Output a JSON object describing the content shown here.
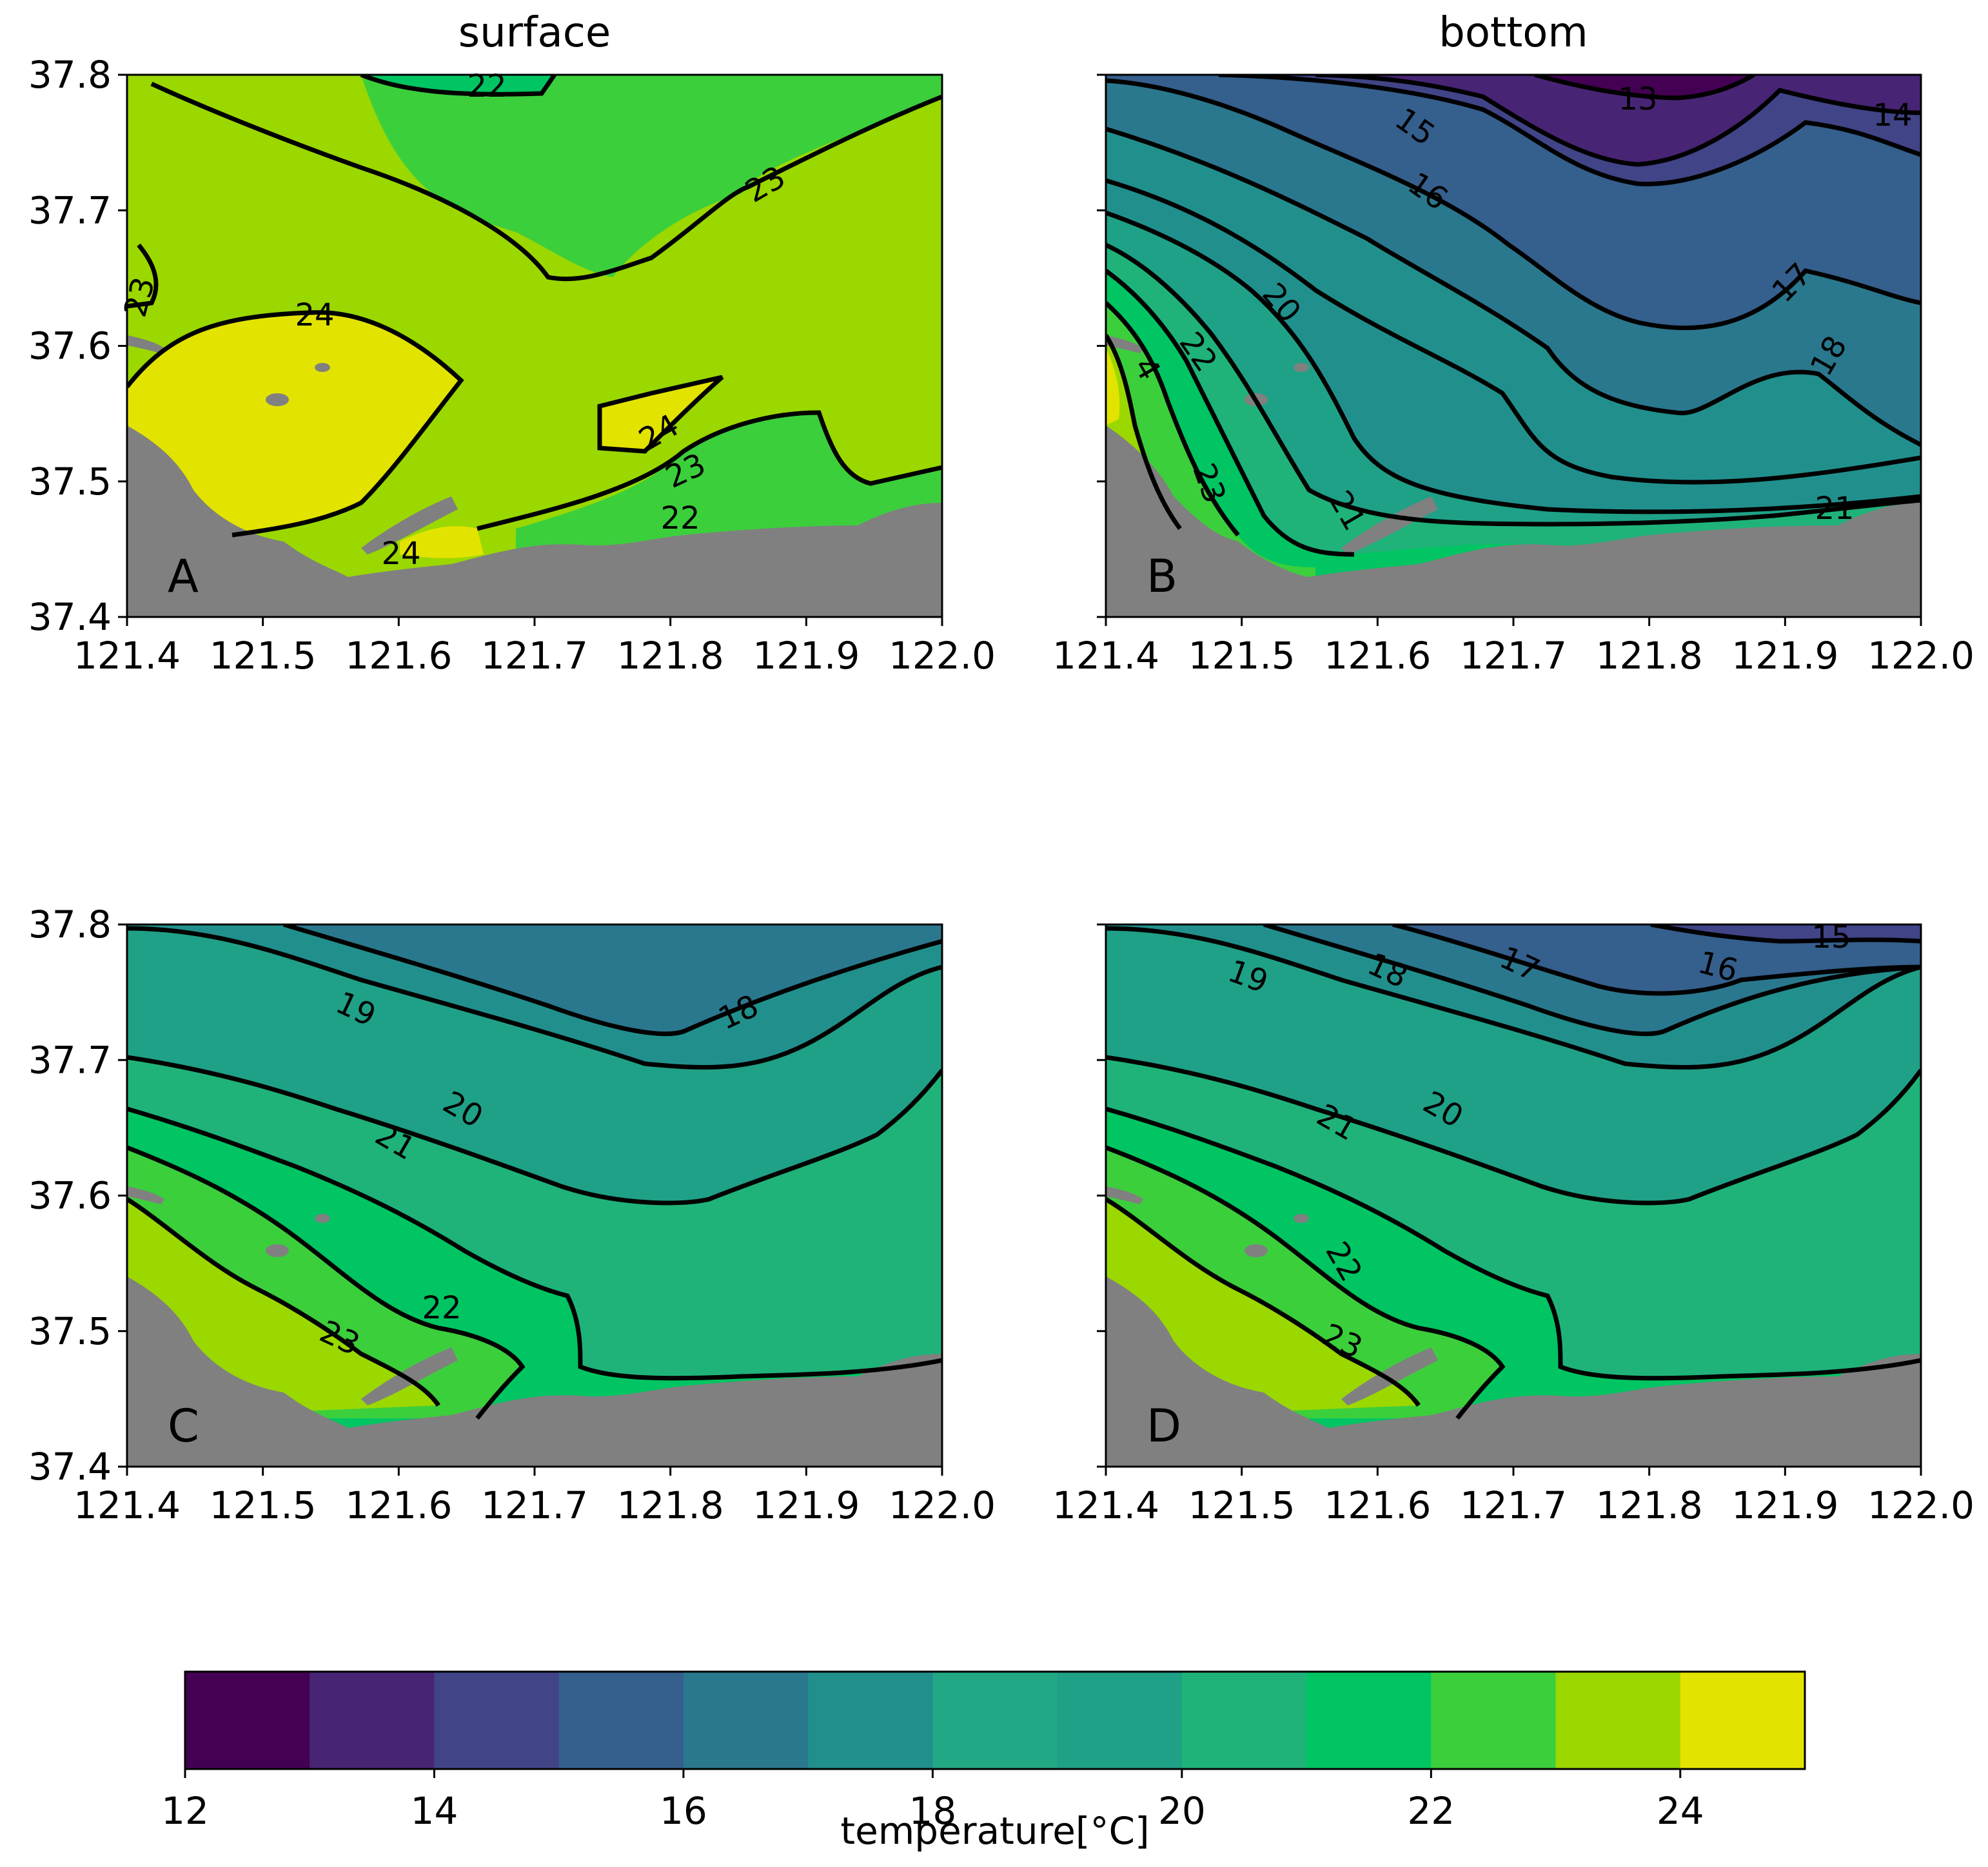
{
  "chart_data": [
    {
      "type": "heatmap",
      "panel": "A",
      "title": "surface",
      "xlim": [
        121.4,
        122.0
      ],
      "ylim": [
        37.4,
        37.8
      ],
      "xticks": [
        "121.4",
        "121.5",
        "121.6",
        "121.7",
        "121.8",
        "121.9",
        "122.0"
      ],
      "yticks": [
        "37.4",
        "37.5",
        "37.6",
        "37.7",
        "37.8"
      ],
      "contour_labels": [
        "22",
        "23",
        "23",
        "24",
        "24",
        "24",
        "23",
        "22"
      ]
    },
    {
      "type": "heatmap",
      "panel": "B",
      "title": "bottom",
      "xlim": [
        121.4,
        122.0
      ],
      "ylim": [
        37.4,
        37.8
      ],
      "xticks": [
        "121.4",
        "121.5",
        "121.6",
        "121.7",
        "121.8",
        "121.9",
        "122.0"
      ],
      "yticks": [
        "37.4",
        "37.5",
        "37.6",
        "37.7",
        "37.8"
      ],
      "contour_labels": [
        "13",
        "14",
        "15",
        "16",
        "17",
        "18",
        "20",
        "22",
        "4",
        "23",
        "21",
        "21"
      ]
    },
    {
      "type": "heatmap",
      "panel": "C",
      "title": "",
      "xlim": [
        121.4,
        122.0
      ],
      "ylim": [
        37.4,
        37.8
      ],
      "xticks": [
        "121.4",
        "121.5",
        "121.6",
        "121.7",
        "121.8",
        "121.9",
        "122.0"
      ],
      "yticks": [
        "37.4",
        "37.5",
        "37.6",
        "37.7",
        "37.8"
      ],
      "contour_labels": [
        "18",
        "19",
        "20",
        "21",
        "22",
        "23"
      ]
    },
    {
      "type": "heatmap",
      "panel": "D",
      "title": "",
      "xlim": [
        121.4,
        122.0
      ],
      "ylim": [
        37.4,
        37.8
      ],
      "xticks": [
        "121.4",
        "121.5",
        "121.6",
        "121.7",
        "121.8",
        "121.9",
        "122.0"
      ],
      "yticks": [
        "37.4",
        "37.5",
        "37.6",
        "37.7",
        "37.8"
      ],
      "contour_labels": [
        "15",
        "16",
        "17",
        "18",
        "19",
        "20",
        "21",
        "22",
        "23"
      ]
    }
  ],
  "colorbar": {
    "label": "temperature[°C]",
    "range": [
      12,
      25
    ],
    "ticks": [
      12,
      14,
      16,
      18,
      20,
      22,
      24
    ],
    "levels": [
      12,
      13,
      14,
      15,
      16,
      17,
      18,
      19,
      20,
      21,
      22,
      23,
      24,
      25
    ],
    "colors": [
      "#440154",
      "#482475",
      "#414487",
      "#355f8d",
      "#2a788e",
      "#21908d",
      "#22a884",
      "#1fa187",
      "#1fb37a",
      "#00c562",
      "#3ccf3c",
      "#9ad800",
      "#e3e300"
    ]
  },
  "colors": {
    "land": "#808080",
    "contour_line": "#000000"
  }
}
